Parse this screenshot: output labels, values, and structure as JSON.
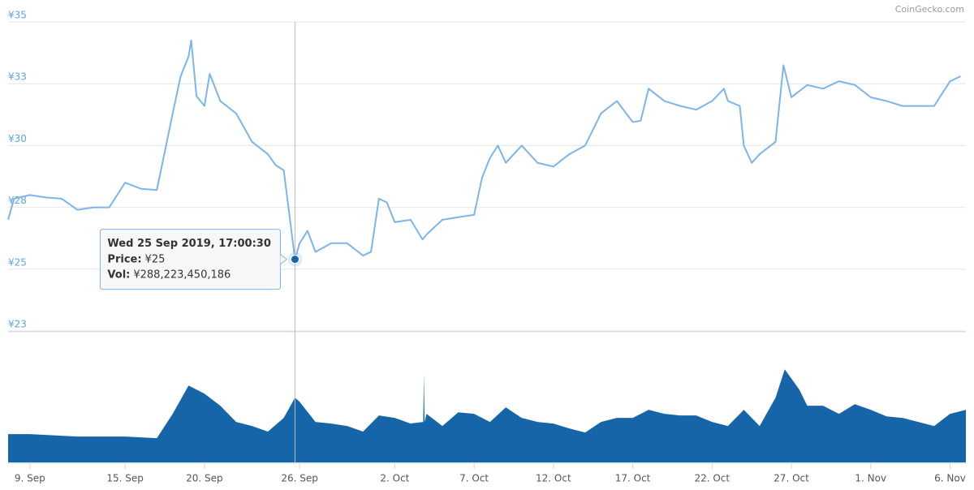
{
  "chart_data": {
    "type": "line",
    "watermark": "CoinGecko.com",
    "color": "#7cb5ec",
    "volume_color": "#1565a8",
    "grid": true,
    "ylim": [
      22.5,
      35
    ],
    "yticks": [
      {
        "value": 35,
        "label": "¥35"
      },
      {
        "value": 32.5,
        "label": "¥33"
      },
      {
        "value": 30,
        "label": "¥30"
      },
      {
        "value": 27.5,
        "label": "¥28"
      },
      {
        "value": 25,
        "label": "¥25"
      },
      {
        "value": 22.5,
        "label": "¥23"
      }
    ],
    "xlim": [
      "2019-09-07T15:00",
      "2019-11-07T00:00"
    ],
    "xticks": [
      {
        "value": "2019-09-09",
        "label": "9. Sep"
      },
      {
        "value": "2019-09-15",
        "label": "15. Sep"
      },
      {
        "value": "2019-09-20",
        "label": "20. Sep"
      },
      {
        "value": "2019-09-26",
        "label": "26. Sep"
      },
      {
        "value": "2019-10-02",
        "label": "2. Oct"
      },
      {
        "value": "2019-10-07",
        "label": "7. Oct"
      },
      {
        "value": "2019-10-12",
        "label": "12. Oct"
      },
      {
        "value": "2019-10-17",
        "label": "17. Oct"
      },
      {
        "value": "2019-10-22",
        "label": "22. Oct"
      },
      {
        "value": "2019-10-27",
        "label": "27. Oct"
      },
      {
        "value": "2019-11-01",
        "label": "1. Nov"
      },
      {
        "value": "2019-11-06",
        "label": "6. Nov"
      }
    ],
    "price": {
      "x": [
        "2019-09-07T15:00",
        "2019-09-08T00:00",
        "2019-09-09",
        "2019-09-10",
        "2019-09-11",
        "2019-09-12",
        "2019-09-13",
        "2019-09-14",
        "2019-09-15",
        "2019-09-16",
        "2019-09-17",
        "2019-09-18",
        "2019-09-18T12:00",
        "2019-09-19",
        "2019-09-19T04:00",
        "2019-09-19T12:00",
        "2019-09-20",
        "2019-09-20T08:00",
        "2019-09-21",
        "2019-09-22",
        "2019-09-23",
        "2019-09-24",
        "2019-09-24T12:00",
        "2019-09-25",
        "2019-09-25T17:00:30",
        "2019-09-26",
        "2019-09-26T12:00",
        "2019-09-27",
        "2019-09-28",
        "2019-09-29",
        "2019-09-30",
        "2019-09-30T12:00",
        "2019-10-01",
        "2019-10-01T12:00",
        "2019-10-02",
        "2019-10-03",
        "2019-10-03T18:00",
        "2019-10-04",
        "2019-10-05",
        "2019-10-06",
        "2019-10-07",
        "2019-10-07T12:00",
        "2019-10-08",
        "2019-10-08T12:00",
        "2019-10-09",
        "2019-10-10",
        "2019-10-11",
        "2019-10-12",
        "2019-10-13",
        "2019-10-14",
        "2019-10-15",
        "2019-10-16",
        "2019-10-17",
        "2019-10-17T12:00",
        "2019-10-18",
        "2019-10-19",
        "2019-10-20",
        "2019-10-21",
        "2019-10-22",
        "2019-10-22T18:00",
        "2019-10-23",
        "2019-10-23T18:00",
        "2019-10-24",
        "2019-10-24T12:00",
        "2019-10-25",
        "2019-10-26",
        "2019-10-26T12:00",
        "2019-10-27",
        "2019-10-28",
        "2019-10-29",
        "2019-10-30",
        "2019-10-31",
        "2019-11-01",
        "2019-11-02",
        "2019-11-03",
        "2019-11-04",
        "2019-11-05",
        "2019-11-06",
        "2019-11-06T16:00"
      ],
      "values": [
        27.0,
        27.85,
        28.0,
        27.9,
        27.85,
        27.4,
        27.5,
        27.5,
        28.5,
        28.25,
        28.2,
        31.3,
        32.8,
        33.6,
        34.25,
        32.0,
        31.6,
        32.9,
        31.8,
        31.3,
        30.15,
        29.65,
        29.2,
        29.0,
        25.4,
        26.05,
        26.55,
        25.7,
        26.05,
        26.05,
        25.55,
        25.7,
        27.85,
        27.7,
        26.9,
        27.0,
        26.2,
        26.4,
        27.0,
        27.1,
        27.2,
        28.7,
        29.5,
        30.0,
        29.3,
        30.0,
        29.3,
        29.15,
        29.65,
        30.0,
        31.3,
        31.8,
        30.95,
        31.0,
        32.3,
        31.8,
        31.6,
        31.45,
        31.8,
        32.3,
        31.8,
        31.6,
        30.0,
        29.3,
        29.65,
        30.15,
        33.25,
        31.95,
        32.45,
        32.3,
        32.6,
        32.45,
        31.95,
        31.8,
        31.6,
        31.6,
        31.6,
        32.6,
        32.8
      ]
    },
    "volume": {
      "ylim": [
        0,
        480000000000
      ],
      "x": [
        "2019-09-07T15:00",
        "2019-09-09",
        "2019-09-12",
        "2019-09-15",
        "2019-09-17",
        "2019-09-18",
        "2019-09-19",
        "2019-09-20",
        "2019-09-21",
        "2019-09-22",
        "2019-09-23",
        "2019-09-24",
        "2019-09-25",
        "2019-09-25T17:00:30",
        "2019-09-26",
        "2019-09-27",
        "2019-09-28",
        "2019-09-29",
        "2019-09-30",
        "2019-10-01",
        "2019-10-02",
        "2019-10-03",
        "2019-10-03T19:00",
        "2019-10-03T20:00",
        "2019-10-03T21:00",
        "2019-10-04",
        "2019-10-05",
        "2019-10-06",
        "2019-10-07",
        "2019-10-08",
        "2019-10-09",
        "2019-10-10",
        "2019-10-11",
        "2019-10-12",
        "2019-10-13",
        "2019-10-14",
        "2019-10-15",
        "2019-10-16",
        "2019-10-17",
        "2019-10-18",
        "2019-10-19",
        "2019-10-20",
        "2019-10-21",
        "2019-10-22",
        "2019-10-23",
        "2019-10-24",
        "2019-10-25",
        "2019-10-26",
        "2019-10-26T14:00",
        "2019-10-27T12:00",
        "2019-10-28",
        "2019-10-29",
        "2019-10-30",
        "2019-10-31",
        "2019-11-01",
        "2019-11-02",
        "2019-11-03",
        "2019-11-04",
        "2019-11-05",
        "2019-11-06",
        "2019-11-07"
      ],
      "values": [
        126000000000,
        126000000000,
        115000000000,
        115000000000,
        108000000000,
        216000000000,
        342000000000,
        306000000000,
        252000000000,
        180000000000,
        162000000000,
        137000000000,
        198000000000,
        288223450186,
        270000000000,
        180000000000,
        173000000000,
        162000000000,
        137000000000,
        209000000000,
        198000000000,
        173000000000,
        180000000000,
        392000000000,
        180000000000,
        216000000000,
        162000000000,
        223000000000,
        216000000000,
        180000000000,
        245000000000,
        198000000000,
        180000000000,
        173000000000,
        151000000000,
        133000000000,
        180000000000,
        198000000000,
        198000000000,
        234000000000,
        216000000000,
        209000000000,
        209000000000,
        180000000000,
        162000000000,
        234000000000,
        162000000000,
        288000000000,
        414000000000,
        324000000000,
        252000000000,
        252000000000,
        216000000000,
        259000000000,
        234000000000,
        205000000000,
        198000000000,
        180000000000,
        162000000000,
        216000000000,
        234000000000
      ]
    },
    "tooltip": {
      "x": "2019-09-25T17:00:30",
      "value": 25.4,
      "date": "Wed 25 Sep 2019, 17:00:30",
      "price_key": "Price:",
      "price": "¥25",
      "vol_key": "Vol:",
      "vol": "¥288,223,450,186"
    }
  }
}
